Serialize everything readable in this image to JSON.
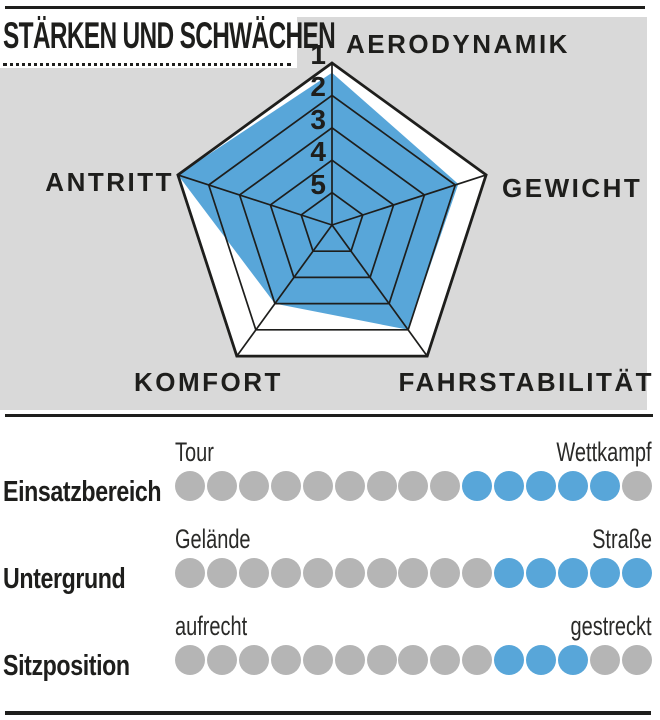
{
  "panel": {
    "title": "STÄRKEN UND SCHWÄCHEN"
  },
  "colors": {
    "accent_blue": "#58a6d9",
    "panel_gray": "#d9d9d9",
    "dot_gray": "#b5b5b5",
    "ink": "#1e1e1c"
  },
  "chart_data": {
    "type": "radar",
    "title": "STÄRKEN UND SCHWÄCHEN",
    "axes": [
      "AERODYNAMIK",
      "GEWICHT",
      "FAHRSTABILITÄT",
      "KOMFORT",
      "ANTRITT"
    ],
    "values": [
      1.3,
      1.9,
      2.0,
      3.0,
      1.0
    ],
    "scale": {
      "ring_labels": [
        "1",
        "2",
        "3",
        "4",
        "5"
      ],
      "outer_ring_value": 1,
      "inner_ring_value": 5
    },
    "fill_color": "#58a6d9",
    "grid": "pentagon-rings"
  },
  "ratings": {
    "dots_total": 15,
    "rows": [
      {
        "label": "Einsatzbereich",
        "left_label": "Tour",
        "right_label": "Wettkampf",
        "active_from": 10,
        "active_to": 14
      },
      {
        "label": "Untergrund",
        "left_label": "Gelände",
        "right_label": "Straße",
        "active_from": 11,
        "active_to": 15
      },
      {
        "label": "Sitzposition",
        "left_label": "aufrecht",
        "right_label": "gestreckt",
        "active_from": 11,
        "active_to": 13
      }
    ]
  }
}
